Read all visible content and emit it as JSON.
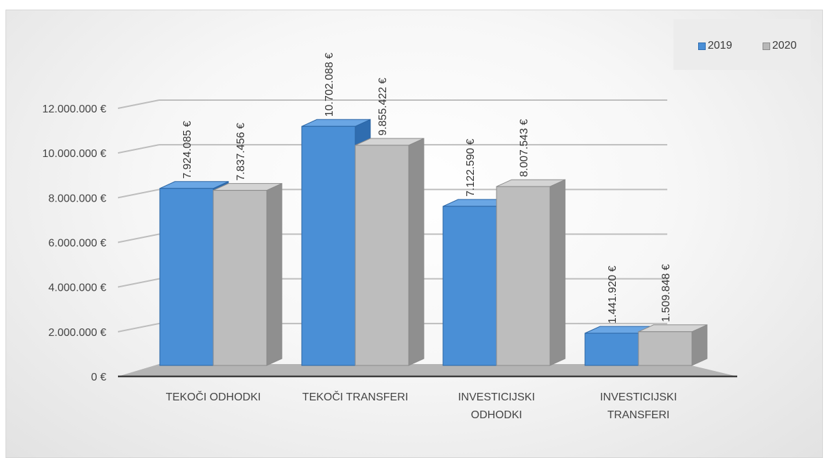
{
  "chart_data": {
    "type": "bar",
    "categories": [
      "TEKOČI ODHODKI",
      "TEKOČI TRANSFERI",
      "INVESTICIJSKI ODHODKI",
      "INVESTICIJSKI TRANSFERI"
    ],
    "category_lines": [
      [
        "TEKOČI ODHODKI"
      ],
      [
        "TEKOČI TRANSFERI"
      ],
      [
        "INVESTICIJSKI",
        "ODHODKI"
      ],
      [
        "INVESTICIJSKI",
        "TRANSFERI"
      ]
    ],
    "series": [
      {
        "name": "2019",
        "values": [
          7924085,
          10702088,
          7122590,
          1441920
        ],
        "labels": [
          "7.924.085 €",
          "10.702.088 €",
          "7.122.590 €",
          "1.441.920 €"
        ],
        "color": "#4a8fd6"
      },
      {
        "name": "2020",
        "values": [
          7837456,
          9855422,
          8007543,
          1509848
        ],
        "labels": [
          "7.837.456 €",
          "9.855.422 €",
          "8.007.543 €",
          "1.509.848 €"
        ],
        "color": "#b8b8b8"
      }
    ],
    "y_ticks": [
      {
        "value": 0,
        "label": "0 €"
      },
      {
        "value": 2000000,
        "label": "2.000.000 €"
      },
      {
        "value": 4000000,
        "label": "4.000.000 €"
      },
      {
        "value": 6000000,
        "label": "6.000.000 €"
      },
      {
        "value": 8000000,
        "label": "8.000.000 €"
      },
      {
        "value": 10000000,
        "label": "10.000.000 €"
      },
      {
        "value": 12000000,
        "label": "12.000.000 €"
      }
    ],
    "ylim": [
      0,
      12000000
    ],
    "grid": true,
    "legend_position": "top-right",
    "title": "",
    "xlabel": "",
    "ylabel": ""
  }
}
